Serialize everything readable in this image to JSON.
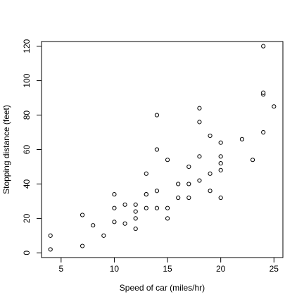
{
  "chart_data": {
    "type": "scatter",
    "title": "",
    "xlabel": "Speed of car (miles/hr)",
    "ylabel": "Stopping distance (feet)",
    "xlim": [
      3.16,
      25.84
    ],
    "ylim": [
      -2.72,
      122.72
    ],
    "xticks": [
      5,
      10,
      15,
      20,
      25
    ],
    "yticks": [
      0,
      20,
      40,
      60,
      80,
      100,
      120
    ],
    "xtick_labels": [
      "5",
      "10",
      "15",
      "20",
      "25"
    ],
    "ytick_labels": [
      "0",
      "20",
      "40",
      "60",
      "80",
      "100",
      "120"
    ],
    "grid": false,
    "legend": "none",
    "point_style": "open-circle",
    "colors": {
      "marker_stroke": "#000000",
      "marker_fill": "#ffffff",
      "axis": "#000000"
    },
    "points": [
      {
        "x": 4,
        "y": 2
      },
      {
        "x": 4,
        "y": 10
      },
      {
        "x": 7,
        "y": 4
      },
      {
        "x": 7,
        "y": 22
      },
      {
        "x": 8,
        "y": 16
      },
      {
        "x": 9,
        "y": 10
      },
      {
        "x": 10,
        "y": 18
      },
      {
        "x": 10,
        "y": 26
      },
      {
        "x": 10,
        "y": 34
      },
      {
        "x": 11,
        "y": 17
      },
      {
        "x": 11,
        "y": 28
      },
      {
        "x": 12,
        "y": 14
      },
      {
        "x": 12,
        "y": 20
      },
      {
        "x": 12,
        "y": 24
      },
      {
        "x": 12,
        "y": 28
      },
      {
        "x": 13,
        "y": 26
      },
      {
        "x": 13,
        "y": 34
      },
      {
        "x": 13,
        "y": 34
      },
      {
        "x": 13,
        "y": 46
      },
      {
        "x": 14,
        "y": 26
      },
      {
        "x": 14,
        "y": 36
      },
      {
        "x": 14,
        "y": 60
      },
      {
        "x": 14,
        "y": 80
      },
      {
        "x": 15,
        "y": 20
      },
      {
        "x": 15,
        "y": 26
      },
      {
        "x": 15,
        "y": 54
      },
      {
        "x": 16,
        "y": 32
      },
      {
        "x": 16,
        "y": 40
      },
      {
        "x": 17,
        "y": 32
      },
      {
        "x": 17,
        "y": 40
      },
      {
        "x": 17,
        "y": 50
      },
      {
        "x": 18,
        "y": 42
      },
      {
        "x": 18,
        "y": 56
      },
      {
        "x": 18,
        "y": 76
      },
      {
        "x": 18,
        "y": 84
      },
      {
        "x": 19,
        "y": 36
      },
      {
        "x": 19,
        "y": 46
      },
      {
        "x": 19,
        "y": 68
      },
      {
        "x": 20,
        "y": 32
      },
      {
        "x": 20,
        "y": 48
      },
      {
        "x": 20,
        "y": 52
      },
      {
        "x": 20,
        "y": 56
      },
      {
        "x": 20,
        "y": 64
      },
      {
        "x": 22,
        "y": 66
      },
      {
        "x": 23,
        "y": 54
      },
      {
        "x": 24,
        "y": 70
      },
      {
        "x": 24,
        "y": 92
      },
      {
        "x": 24,
        "y": 93
      },
      {
        "x": 24,
        "y": 120
      },
      {
        "x": 25,
        "y": 85
      }
    ]
  }
}
